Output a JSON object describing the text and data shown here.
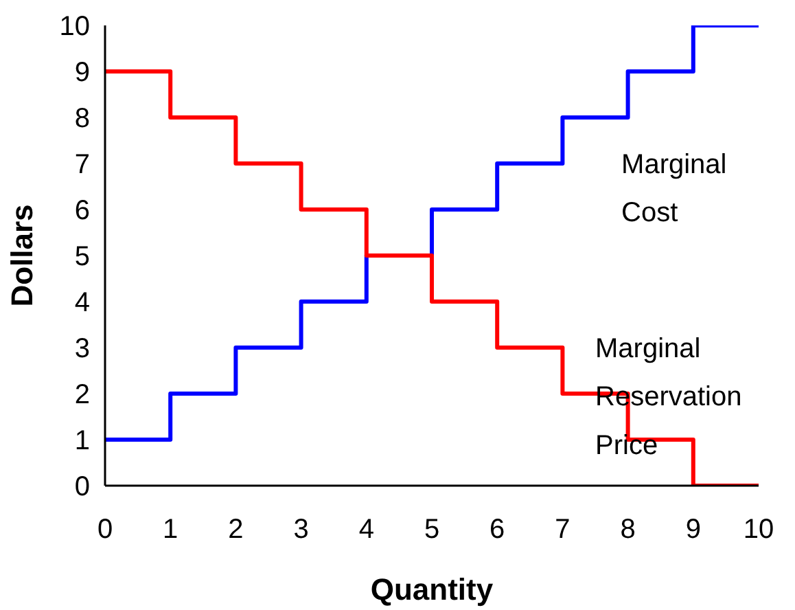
{
  "chart_data": {
    "type": "step",
    "xlabel": "Quantity",
    "ylabel": "Dollars",
    "x": [
      0,
      1,
      2,
      3,
      4,
      5,
      6,
      7,
      8,
      9,
      10
    ],
    "series": [
      {
        "name": "Marginal Cost",
        "color": "#0000ff",
        "values": [
          1,
          2,
          3,
          4,
          5,
          6,
          7,
          8,
          9,
          10,
          10
        ]
      },
      {
        "name": "Marginal Reservation Price",
        "color": "#ff0000",
        "values": [
          9,
          8,
          7,
          6,
          5,
          4,
          3,
          2,
          1,
          0,
          0
        ]
      }
    ],
    "xlim": [
      0,
      10
    ],
    "ylim": [
      0,
      10
    ],
    "xticks": [
      0,
      1,
      2,
      3,
      4,
      5,
      6,
      7,
      8,
      9,
      10
    ],
    "yticks": [
      0,
      1,
      2,
      3,
      4,
      5,
      6,
      7,
      8,
      9,
      10
    ],
    "grid": false
  }
}
